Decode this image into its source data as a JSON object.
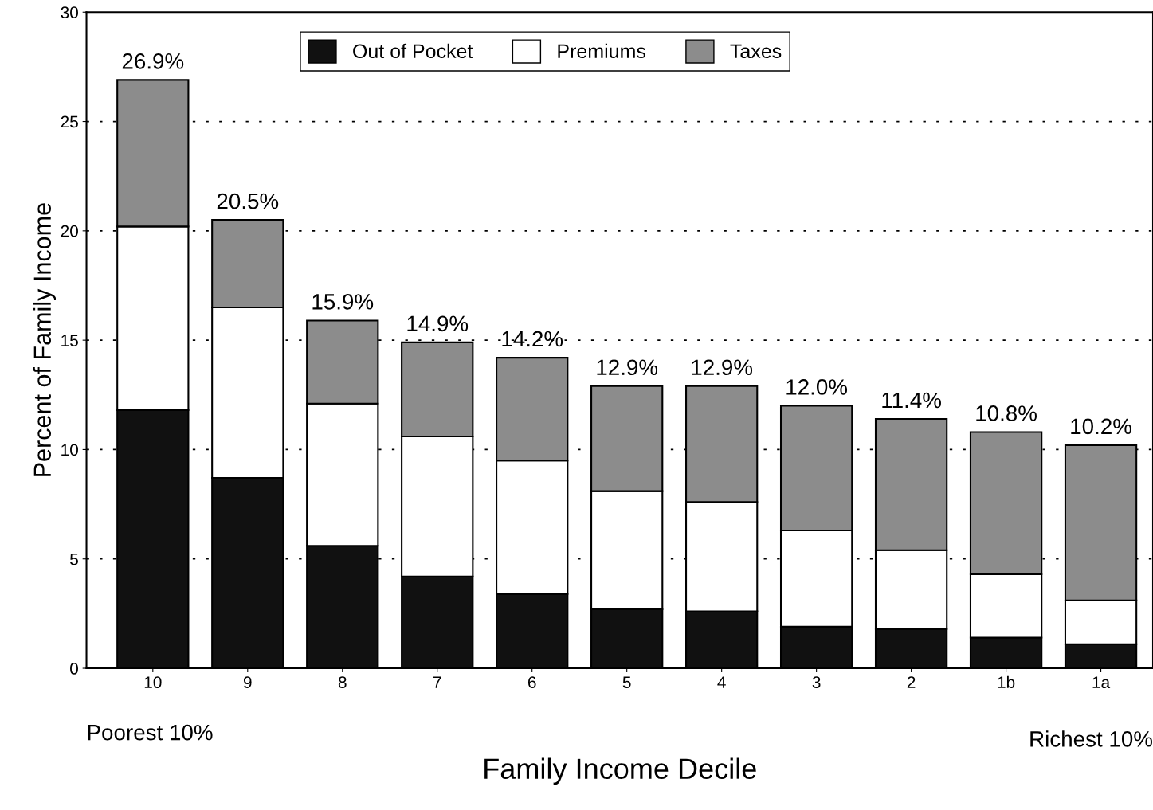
{
  "chart_data": {
    "type": "bar",
    "stacked": true,
    "xlabel": "Family Income Decile",
    "ylabel": "Percent of Family Income",
    "categories": [
      "10",
      "9",
      "8",
      "7",
      "6",
      "5",
      "4",
      "3",
      "2",
      "1b",
      "1a"
    ],
    "series": [
      {
        "name": "Out of Pocket",
        "color": "#111111",
        "values": [
          11.8,
          8.7,
          5.6,
          4.2,
          3.4,
          2.7,
          2.6,
          1.9,
          1.8,
          1.4,
          1.1
        ]
      },
      {
        "name": "Premiums",
        "color": "#ffffff",
        "values": [
          8.4,
          7.8,
          6.5,
          6.4,
          6.1,
          5.4,
          5.0,
          4.4,
          3.6,
          2.9,
          2.0
        ]
      },
      {
        "name": "Taxes",
        "color": "#8c8c8c",
        "values": [
          6.7,
          4.0,
          3.8,
          4.3,
          4.7,
          4.8,
          5.3,
          5.7,
          6.0,
          6.5,
          7.1
        ]
      }
    ],
    "totals": [
      "26.9%",
      "20.5%",
      "15.9%",
      "14.9%",
      "14.2%",
      "12.9%",
      "12.9%",
      "12.0%",
      "11.4%",
      "10.8%",
      "10.2%"
    ],
    "ylim": [
      0,
      30
    ],
    "yticks": [
      0,
      5,
      10,
      15,
      20,
      25,
      30
    ],
    "grid": "y",
    "legend": "top",
    "annotations": [
      "Poorest 10%",
      "Richest 10%"
    ]
  }
}
